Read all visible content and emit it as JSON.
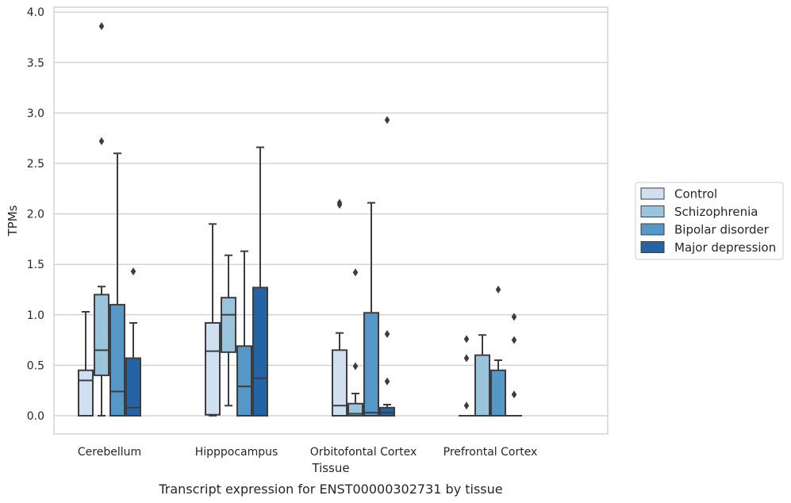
{
  "chart_data": {
    "type": "box",
    "title": "",
    "caption": "Transcript expression for ENST00000302731 by tissue",
    "xlabel": "Tissue",
    "ylabel": "TPMs",
    "ylim": [
      -0.18,
      4.05
    ],
    "yticks": [
      0.0,
      0.5,
      1.0,
      1.5,
      2.0,
      2.5,
      3.0,
      3.5,
      4.0
    ],
    "ytick_labels": [
      "0.0",
      "0.5",
      "1.0",
      "1.5",
      "2.0",
      "2.5",
      "3.0",
      "3.5",
      "4.0"
    ],
    "grid": "horizontal",
    "legend_position": "right",
    "categories": [
      "Cerebellum",
      "Hipppocampus",
      "Orbitofontal Cortex",
      "Prefrontal Cortex"
    ],
    "series": [
      {
        "name": "Control",
        "color": "#d0e0f0",
        "boxes": [
          {
            "q1": 0.0,
            "median": 0.35,
            "q3": 0.45,
            "whisker_low": 0.0,
            "whisker_high": 1.03,
            "outliers": []
          },
          {
            "q1": 0.01,
            "median": 0.64,
            "q3": 0.92,
            "whisker_low": 0.0,
            "whisker_high": 1.9,
            "outliers": []
          },
          {
            "q1": 0.0,
            "median": 0.1,
            "q3": 0.65,
            "whisker_low": 0.0,
            "whisker_high": 0.82,
            "outliers": [
              2.09,
              2.11
            ]
          },
          {
            "q1": 0.0,
            "median": 0.0,
            "q3": 0.0,
            "whisker_low": 0.0,
            "whisker_high": 0.0,
            "outliers": [
              0.1,
              0.57,
              0.76
            ]
          }
        ]
      },
      {
        "name": "Schizophrenia",
        "color": "#9ac4dc",
        "boxes": [
          {
            "q1": 0.4,
            "median": 0.65,
            "q3": 1.2,
            "whisker_low": 0.0,
            "whisker_high": 1.28,
            "outliers": [
              2.72,
              3.86
            ]
          },
          {
            "q1": 0.63,
            "median": 1.0,
            "q3": 1.17,
            "whisker_low": 0.1,
            "whisker_high": 1.59,
            "outliers": []
          },
          {
            "q1": 0.0,
            "median": 0.02,
            "q3": 0.12,
            "whisker_low": 0.0,
            "whisker_high": 0.22,
            "outliers": [
              0.49,
              1.42
            ]
          },
          {
            "q1": 0.0,
            "median": 0.0,
            "q3": 0.6,
            "whisker_low": 0.0,
            "whisker_high": 0.8,
            "outliers": []
          }
        ]
      },
      {
        "name": "Bipolar disorder",
        "color": "#5597c6",
        "boxes": [
          {
            "q1": 0.0,
            "median": 0.24,
            "q3": 1.1,
            "whisker_low": 0.0,
            "whisker_high": 2.6,
            "outliers": []
          },
          {
            "q1": 0.0,
            "median": 0.29,
            "q3": 0.69,
            "whisker_low": 0.0,
            "whisker_high": 1.63,
            "outliers": []
          },
          {
            "q1": 0.0,
            "median": 0.03,
            "q3": 1.02,
            "whisker_low": 0.0,
            "whisker_high": 2.11,
            "outliers": []
          },
          {
            "q1": 0.0,
            "median": 0.0,
            "q3": 0.45,
            "whisker_low": 0.0,
            "whisker_high": 0.55,
            "outliers": [
              1.25
            ]
          }
        ]
      },
      {
        "name": "Major depression",
        "color": "#2463a4",
        "boxes": [
          {
            "q1": 0.0,
            "median": 0.08,
            "q3": 0.57,
            "whisker_low": 0.0,
            "whisker_high": 0.92,
            "outliers": [
              1.43
            ]
          },
          {
            "q1": 0.0,
            "median": 0.37,
            "q3": 1.27,
            "whisker_low": 0.0,
            "whisker_high": 2.66,
            "outliers": []
          },
          {
            "q1": 0.0,
            "median": 0.03,
            "q3": 0.08,
            "whisker_low": 0.0,
            "whisker_high": 0.11,
            "outliers": [
              0.34,
              0.81,
              2.93
            ]
          },
          {
            "q1": 0.0,
            "median": 0.0,
            "q3": 0.0,
            "whisker_low": 0.0,
            "whisker_high": 0.0,
            "outliers": [
              0.21,
              0.75,
              0.98
            ]
          }
        ]
      }
    ]
  }
}
